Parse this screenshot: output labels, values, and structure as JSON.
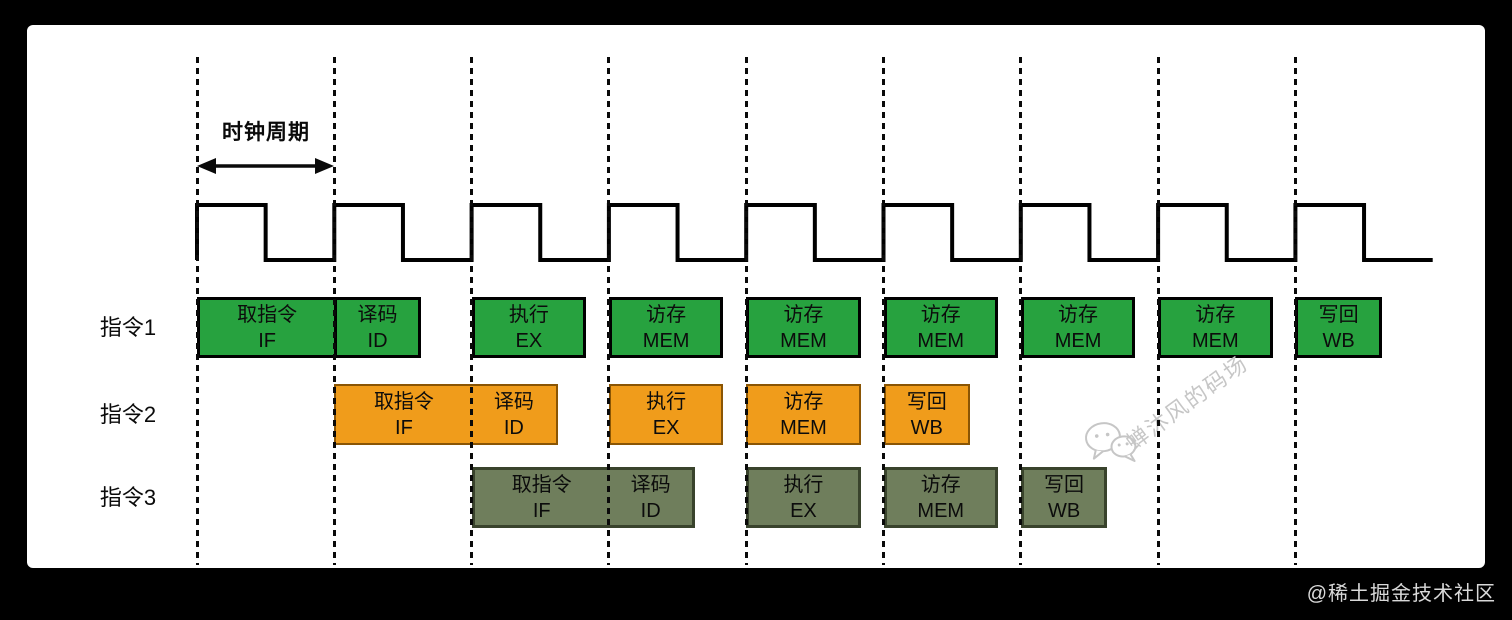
{
  "clock": {
    "label": "时钟周期",
    "cycles": 9,
    "duty": 0.5
  },
  "rows": [
    {
      "label": "指令1",
      "theme": "green",
      "boxes": [
        {
          "cycle": 0,
          "zh": "取指令",
          "en": "IF",
          "kind": "full",
          "joinRight": true
        },
        {
          "cycle": 1,
          "zh": "译码",
          "en": "ID",
          "kind": "short"
        },
        {
          "cycle": 2,
          "zh": "执行",
          "en": "EX",
          "kind": "mid"
        },
        {
          "cycle": 3,
          "zh": "访存",
          "en": "MEM",
          "kind": "mid"
        },
        {
          "cycle": 4,
          "zh": "访存",
          "en": "MEM",
          "kind": "mid"
        },
        {
          "cycle": 5,
          "zh": "访存",
          "en": "MEM",
          "kind": "mid"
        },
        {
          "cycle": 6,
          "zh": "访存",
          "en": "MEM",
          "kind": "mid"
        },
        {
          "cycle": 7,
          "zh": "访存",
          "en": "MEM",
          "kind": "mid"
        },
        {
          "cycle": 8,
          "zh": "写回",
          "en": "WB",
          "kind": "short"
        }
      ]
    },
    {
      "label": "指令2",
      "theme": "orange",
      "boxes": [
        {
          "cycle": 1,
          "zh": "取指令",
          "en": "IF",
          "kind": "full",
          "joinRight": true
        },
        {
          "cycle": 2,
          "zh": "译码",
          "en": "ID",
          "kind": "short",
          "joinLeft": true
        },
        {
          "cycle": 3,
          "zh": "执行",
          "en": "EX",
          "kind": "mid"
        },
        {
          "cycle": 4,
          "zh": "访存",
          "en": "MEM",
          "kind": "mid"
        },
        {
          "cycle": 5,
          "zh": "写回",
          "en": "WB",
          "kind": "short"
        }
      ]
    },
    {
      "label": "指令3",
      "theme": "olive",
      "boxes": [
        {
          "cycle": 2,
          "zh": "取指令",
          "en": "IF",
          "kind": "full",
          "joinRight": true
        },
        {
          "cycle": 3,
          "zh": "译码",
          "en": "ID",
          "kind": "short",
          "joinLeft": true
        },
        {
          "cycle": 4,
          "zh": "执行",
          "en": "EX",
          "kind": "mid"
        },
        {
          "cycle": 5,
          "zh": "访存",
          "en": "MEM",
          "kind": "mid"
        },
        {
          "cycle": 6,
          "zh": "写回",
          "en": "WB",
          "kind": "short"
        }
      ]
    }
  ],
  "themes": {
    "green": {
      "fill": "#27a23f",
      "border": "#000000",
      "borderWidth": 3
    },
    "orange": {
      "fill": "#f09c1b",
      "border": "#8a5504",
      "borderWidth": 2
    },
    "olive": {
      "fill": "#6f7e5c",
      "border": "#39432c",
      "borderWidth": 3
    }
  },
  "colors": {
    "background": "#000000",
    "canvas": "#ffffff",
    "waveform": "#000000",
    "gridline": "#0a0a0a",
    "watermark_gray": "#c6c6c6"
  },
  "watermarks": {
    "diagonal_text": "蝉沐风的码场",
    "credit": "@稀土掘金技术社区"
  }
}
